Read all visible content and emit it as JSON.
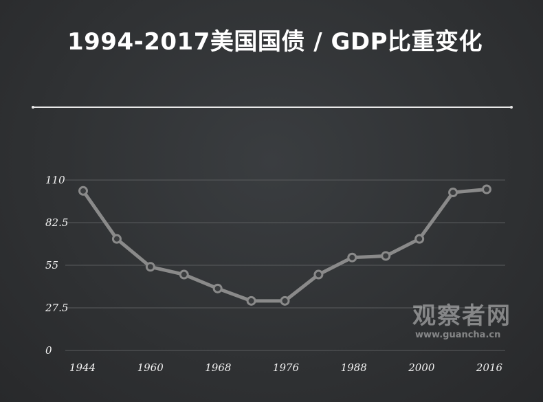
{
  "header": {
    "title": "1994-2017美国国债 / GDP比重变化"
  },
  "watermark": {
    "name": "观察者网",
    "url": "www.guancha.cn"
  },
  "colors": {
    "line": "#8a8a8a",
    "grid": "#5a5c5e",
    "text": "#f2f2f2"
  },
  "chart_data": {
    "type": "line",
    "title": "1994-2017美国国债 / GDP比重变化",
    "xlabel": "",
    "ylabel": "",
    "x_tick_labels": [
      "1944",
      "1960",
      "1968",
      "1976",
      "1988",
      "2000",
      "2016"
    ],
    "y_tick_labels": [
      "0",
      "27.5",
      "55",
      "82.5",
      "110"
    ],
    "y_ticks": [
      0,
      27.5,
      55,
      82.5,
      110
    ],
    "ylim": [
      0,
      110
    ],
    "grid": true,
    "legend": "none",
    "series": [
      {
        "values": [
          103,
          72,
          54,
          49,
          40,
          32,
          32,
          49,
          60,
          61,
          72,
          102,
          104
        ]
      }
    ]
  }
}
